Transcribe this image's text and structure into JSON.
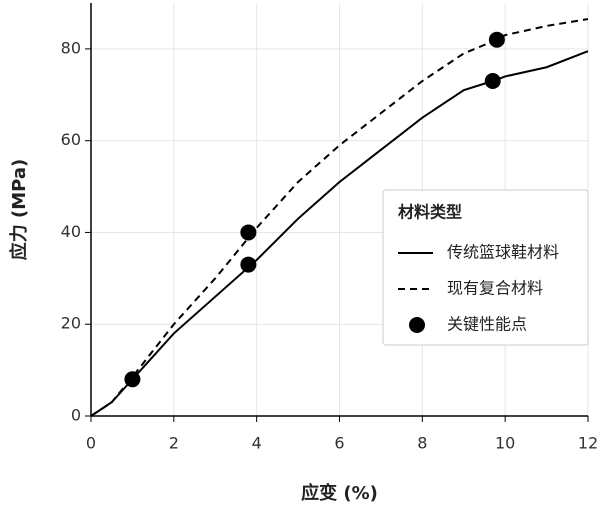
{
  "chart_data": {
    "type": "line",
    "x_label": "应变 (%)",
    "y_label": "应力 (MPa)",
    "xlim": [
      0,
      12
    ],
    "ylim": [
      0,
      90
    ],
    "xticks": [
      0,
      2,
      4,
      6,
      8,
      10,
      12
    ],
    "yticks": [
      0,
      20,
      40,
      60,
      80
    ],
    "grid": true,
    "legend_position": "center right",
    "legend_title": "材料类型",
    "series": [
      {
        "name": "传统篮球鞋材料",
        "type": "line",
        "style": "solid",
        "color": "#000000",
        "x": [
          0,
          0.5,
          1,
          2,
          3,
          4,
          5,
          6,
          7,
          8,
          9,
          9.7,
          10,
          11,
          12
        ],
        "values": [
          0,
          3,
          8,
          18,
          26,
          34,
          43,
          51,
          58,
          65,
          71,
          73,
          74,
          76,
          79.5
        ]
      },
      {
        "name": "现有复合材料",
        "type": "line",
        "style": "dashed",
        "color": "#000000",
        "x": [
          0,
          0.5,
          1,
          2,
          3,
          4,
          5,
          6,
          7,
          8,
          9,
          9.8,
          10,
          11,
          12
        ],
        "values": [
          0,
          3,
          8.5,
          20,
          30,
          41,
          51,
          59,
          66,
          73,
          79,
          82,
          83,
          85,
          86.5
        ]
      },
      {
        "name": "关键性能点",
        "type": "scatter",
        "color": "#000000",
        "x": [
          1,
          3.8,
          9.7,
          3.8,
          9.8
        ],
        "values": [
          8,
          33,
          73,
          40,
          82
        ]
      }
    ]
  }
}
